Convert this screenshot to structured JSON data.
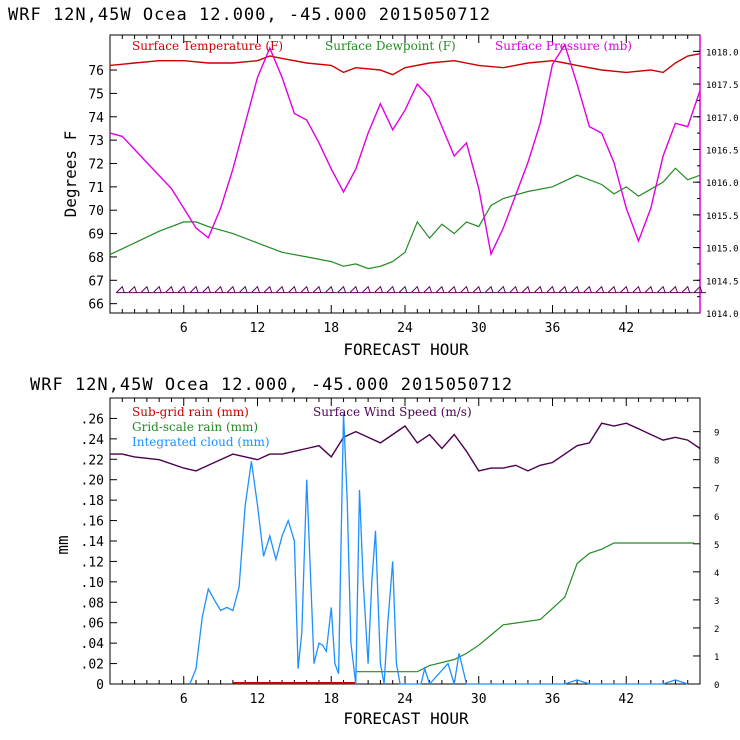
{
  "chart_data": [
    {
      "type": "line",
      "title": "WRF   12N,45W Ocea   12.000, -45.000   2015050712",
      "xlabel": "FORECAST HOUR",
      "ylabel": "Degrees F",
      "xlim": [
        0,
        48
      ],
      "ylim": [
        65.6,
        77.5
      ],
      "y2lim": [
        1014.0,
        1018.25
      ],
      "xticks": [
        6,
        12,
        18,
        24,
        30,
        36,
        42
      ],
      "yticks": [
        66,
        67,
        68,
        69,
        70,
        71,
        72,
        73,
        74,
        75,
        76
      ],
      "y2ticks": [
        1014.0,
        1014.5,
        1015.0,
        1015.5,
        1016.0,
        1016.5,
        1017.0,
        1017.5,
        1018.0
      ],
      "y2ticklabels": [
        "1014.0",
        "1014.5",
        "1015.0",
        "1015.5",
        "1016.0",
        "1016.5",
        "1017.0",
        "1017.5",
        "1018.0"
      ],
      "legend": [
        "Surface Temperature (F)",
        "Surface Dewpoint (F)",
        "Surface Pressure (mb)"
      ],
      "colors": {
        "temperature": "#cc0000",
        "dewpoint": "#228b22",
        "pressure": "#e000e0",
        "wind_barbs": "#5a005a"
      },
      "series": [
        {
          "name": "Surface Temperature (F)",
          "axis": "left",
          "x": [
            0,
            2,
            4,
            6,
            8,
            10,
            12,
            13,
            14,
            16,
            18,
            19,
            20,
            22,
            23,
            24,
            26,
            28,
            30,
            32,
            34,
            36,
            37,
            38,
            40,
            42,
            44,
            45,
            46,
            47,
            48
          ],
          "y": [
            76.2,
            76.3,
            76.4,
            76.4,
            76.3,
            76.3,
            76.4,
            76.6,
            76.5,
            76.3,
            76.2,
            75.9,
            76.1,
            76.0,
            75.8,
            76.1,
            76.3,
            76.4,
            76.2,
            76.1,
            76.3,
            76.4,
            76.3,
            76.2,
            76.0,
            75.9,
            76.0,
            75.9,
            76.3,
            76.6,
            76.7
          ]
        },
        {
          "name": "Surface Dewpoint (F)",
          "axis": "left",
          "x": [
            0,
            2,
            4,
            6,
            7,
            8,
            10,
            12,
            14,
            16,
            18,
            19,
            20,
            21,
            22,
            23,
            24,
            25,
            26,
            27,
            28,
            29,
            30,
            31,
            32,
            34,
            36,
            38,
            40,
            41,
            42,
            43,
            44,
            45,
            46,
            47,
            48
          ],
          "y": [
            68.1,
            68.6,
            69.1,
            69.5,
            69.5,
            69.3,
            69.0,
            68.6,
            68.2,
            68.0,
            67.8,
            67.6,
            67.7,
            67.5,
            67.6,
            67.8,
            68.2,
            69.5,
            68.8,
            69.4,
            69.0,
            69.5,
            69.3,
            70.2,
            70.5,
            70.8,
            71.0,
            71.5,
            71.1,
            70.7,
            71.0,
            70.6,
            70.9,
            71.2,
            71.8,
            71.3,
            71.5
          ]
        },
        {
          "name": "Surface Pressure (mb)",
          "axis": "right",
          "x": [
            0,
            1,
            2,
            3,
            4,
            5,
            6,
            7,
            8,
            9,
            10,
            11,
            12,
            13,
            14,
            15,
            16,
            17,
            18,
            19,
            20,
            21,
            22,
            23,
            24,
            25,
            26,
            27,
            28,
            29,
            30,
            31,
            32,
            33,
            34,
            35,
            36,
            37,
            38,
            39,
            40,
            41,
            42,
            43,
            44,
            45,
            46,
            47,
            48
          ],
          "y": [
            1016.75,
            1016.7,
            1016.5,
            1016.3,
            1016.1,
            1015.9,
            1015.6,
            1015.3,
            1015.15,
            1015.6,
            1016.2,
            1016.9,
            1017.6,
            1018.05,
            1017.6,
            1017.05,
            1016.95,
            1016.6,
            1016.2,
            1015.85,
            1016.2,
            1016.75,
            1017.2,
            1016.8,
            1017.1,
            1017.5,
            1017.3,
            1016.85,
            1016.4,
            1016.6,
            1015.9,
            1014.9,
            1015.3,
            1015.8,
            1016.3,
            1016.9,
            1017.8,
            1018.1,
            1017.5,
            1016.85,
            1016.75,
            1016.3,
            1015.6,
            1015.1,
            1015.6,
            1016.4,
            1016.9,
            1016.85,
            1017.4
          ]
        }
      ],
      "wind_barbs": {
        "y_level": 66.6,
        "x_start": 1,
        "x_end": 48,
        "spacing": 1
      }
    },
    {
      "type": "line",
      "title": "WRF   12N,45W Ocea   12.000, -45.000   2015050712",
      "xlabel": "FORECAST HOUR",
      "ylabel": "mm",
      "xlim": [
        0,
        48
      ],
      "ylim": [
        0,
        0.28
      ],
      "y2lim": [
        0,
        10.2
      ],
      "xticks": [
        6,
        12,
        18,
        24,
        30,
        36,
        42
      ],
      "yticks": [
        0,
        0.02,
        0.04,
        0.06,
        0.08,
        0.1,
        0.12,
        0.14,
        0.16,
        0.18,
        0.2,
        0.22,
        0.24,
        0.26
      ],
      "yticklabels": [
        "0",
        ".02",
        ".04",
        ".06",
        ".08",
        ".10",
        ".12",
        ".14",
        ".16",
        ".18",
        ".20",
        ".22",
        ".24",
        ".26"
      ],
      "y2ticks": [
        0,
        1,
        2,
        3,
        4,
        5,
        6,
        7,
        8,
        9
      ],
      "y2ticklabels": [
        "0",
        "1",
        "2",
        "3",
        "4",
        "5",
        "6",
        "7",
        "8",
        "9"
      ],
      "legend": [
        "Sub-grid rain (mm)",
        "Surface Wind Speed (m/s)",
        "Grid-scale rain (mm)",
        "Integrated cloud (mm)"
      ],
      "colors": {
        "subgrid": "#cc0000",
        "wind": "#4b0050",
        "gridrain": "#228b22",
        "cloud": "#1e90ff"
      },
      "series": [
        {
          "name": "Sub-grid rain (mm)",
          "axis": "left",
          "x": [
            10,
            20
          ],
          "y": [
            0.001,
            0.001
          ]
        },
        {
          "name": "Surface Wind Speed (m/s)",
          "axis": "right",
          "x": [
            0,
            1,
            2,
            4,
            6,
            7,
            8,
            10,
            12,
            13,
            14,
            15,
            16,
            17,
            18,
            19,
            20,
            21,
            22,
            23,
            24,
            25,
            26,
            27,
            28,
            29,
            30,
            31,
            32,
            33,
            34,
            35,
            36,
            37,
            38,
            39,
            40,
            41,
            42,
            43,
            44,
            45,
            46,
            47,
            48
          ],
          "y": [
            8.2,
            8.2,
            8.1,
            8.0,
            7.7,
            7.6,
            7.8,
            8.2,
            8.0,
            8.2,
            8.2,
            8.3,
            8.4,
            8.5,
            8.1,
            8.8,
            9.0,
            8.8,
            8.6,
            8.9,
            9.2,
            8.6,
            8.9,
            8.4,
            8.9,
            8.3,
            7.6,
            7.7,
            7.7,
            7.8,
            7.6,
            7.8,
            7.9,
            8.2,
            8.5,
            8.6,
            9.3,
            9.2,
            9.3,
            9.1,
            8.9,
            8.7,
            8.8,
            8.7,
            8.4
          ]
        },
        {
          "name": "Grid-scale rain (mm)",
          "axis": "left",
          "x": [
            20,
            25,
            26,
            28,
            29,
            30,
            31,
            32,
            35,
            37,
            38,
            39,
            40,
            41,
            47.5
          ],
          "y": [
            0.012,
            0.012,
            0.018,
            0.024,
            0.03,
            0.038,
            0.048,
            0.058,
            0.063,
            0.085,
            0.118,
            0.128,
            0.132,
            0.138,
            0.138
          ]
        },
        {
          "name": "Integrated cloud (mm)",
          "axis": "left",
          "x": [
            6.5,
            7,
            7.5,
            8,
            8.5,
            9,
            9.5,
            10,
            10.5,
            11,
            11.5,
            12,
            12.5,
            13,
            13.5,
            14,
            14.5,
            15,
            15.3,
            15.6,
            16,
            16.3,
            16.6,
            17,
            17.3,
            17.6,
            18,
            18.3,
            18.6,
            19,
            19.3,
            19.6,
            20,
            20.3,
            20.6,
            21,
            21.3,
            21.6,
            22,
            22.3,
            22.6,
            23,
            23.3,
            23.6,
            24,
            25.3,
            25.6,
            26,
            27.5,
            28,
            28.4,
            29,
            31,
            34,
            36,
            37,
            38,
            39,
            43,
            45,
            46,
            47
          ],
          "y": [
            0.0,
            0.015,
            0.065,
            0.093,
            0.082,
            0.072,
            0.075,
            0.072,
            0.095,
            0.175,
            0.218,
            0.175,
            0.125,
            0.145,
            0.122,
            0.145,
            0.16,
            0.14,
            0.015,
            0.05,
            0.2,
            0.11,
            0.02,
            0.04,
            0.038,
            0.032,
            0.075,
            0.02,
            0.01,
            0.265,
            0.18,
            0.04,
            0.0,
            0.19,
            0.1,
            0.02,
            0.1,
            0.15,
            0.02,
            0.0,
            0.06,
            0.12,
            0.02,
            0.0,
            0.0,
            0.0,
            0.015,
            0.0,
            0.02,
            0.0,
            0.03,
            0.0,
            0.0,
            0.0,
            0.0,
            0.0,
            0.004,
            0.0,
            0.0,
            0.0,
            0.004,
            0.0
          ]
        }
      ]
    }
  ]
}
